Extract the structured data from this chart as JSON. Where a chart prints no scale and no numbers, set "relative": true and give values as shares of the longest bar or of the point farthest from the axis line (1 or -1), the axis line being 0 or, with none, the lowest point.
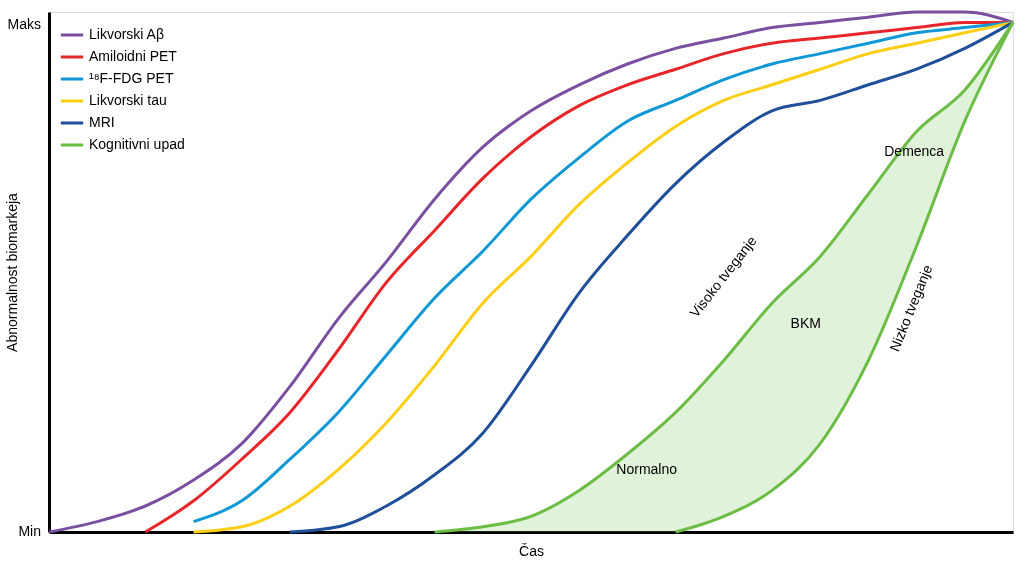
{
  "chart_data": {
    "type": "line",
    "relative": true,
    "ylabel": "Abnormalnost biomarkeja",
    "xlabel": "Čas",
    "categories": [
      null,
      null,
      null,
      null,
      null,
      null,
      null,
      null,
      null,
      null,
      null,
      null,
      null,
      null,
      null,
      null,
      null,
      null,
      null,
      null,
      null
    ],
    "legend": "top left",
    "marker": "none",
    "line_style": "solid",
    "series": [
      {
        "name": "Likvorski Aβ",
        "color": "#7b4fa0",
        "values": [
          0,
          0.02,
          0.05,
          0.1,
          0.17,
          0.28,
          0.41,
          0.52,
          0.64,
          0.74,
          0.81,
          0.86,
          0.9,
          0.93,
          0.95,
          0.97,
          0.98,
          0.99,
          1,
          1,
          0.98
        ]
      },
      {
        "name": "Amiloidni PET",
        "color": "#e8262a",
        "values": [
          null,
          null,
          0,
          0.06,
          0.14,
          0.23,
          0.35,
          0.48,
          0.58,
          0.68,
          0.76,
          0.82,
          0.86,
          0.89,
          0.92,
          0.94,
          0.95,
          0.96,
          0.97,
          0.98,
          0.98
        ]
      },
      {
        "name": "¹⁸F-FDG PET",
        "color": "#0f98d5",
        "values": [
          null,
          null,
          null,
          0.02,
          0.06,
          0.14,
          0.23,
          0.34,
          0.45,
          0.54,
          0.64,
          0.72,
          0.79,
          0.83,
          0.87,
          0.9,
          0.92,
          0.94,
          0.96,
          0.97,
          0.98
        ]
      },
      {
        "name": "Likvorski tau",
        "color": "#fccf14",
        "values": [
          null,
          null,
          null,
          0,
          0.01,
          0.05,
          0.12,
          0.21,
          0.32,
          0.44,
          0.53,
          0.63,
          0.71,
          0.78,
          0.83,
          0.86,
          0.89,
          0.92,
          0.94,
          0.96,
          0.98
        ]
      },
      {
        "name": "MRI",
        "color": "#1f4f99",
        "values": [
          null,
          null,
          null,
          null,
          null,
          0,
          0.01,
          0.05,
          0.11,
          0.19,
          0.32,
          0.46,
          0.57,
          0.67,
          0.75,
          0.81,
          0.83,
          0.86,
          0.89,
          0.93,
          0.98
        ]
      },
      {
        "name": "Kognitivni upad",
        "color": "#6bbd45",
        "values": [
          null,
          null,
          null,
          null,
          null,
          null,
          null,
          null,
          0,
          0.01,
          0.03,
          0.08,
          0.15,
          0.23,
          0.33,
          0.44,
          0.53,
          0.65,
          0.77,
          0.85,
          0.98
        ],
        "lower": [
          null,
          null,
          null,
          null,
          null,
          null,
          null,
          null,
          0,
          0,
          0,
          0,
          0,
          0,
          0.03,
          0.08,
          0.17,
          0.33,
          0.55,
          0.79,
          0.98
        ],
        "upper": [
          null,
          null,
          null,
          null,
          null,
          null,
          null,
          null,
          0,
          0.01,
          0.03,
          0.08,
          0.15,
          0.23,
          0.33,
          0.44,
          0.53,
          0.65,
          0.77,
          0.85,
          0.98
        ]
      },
      {
        "color": "#6bbd45",
        "values": [
          null,
          null,
          null,
          null,
          null,
          null,
          null,
          null,
          null,
          null,
          null,
          null,
          null,
          0,
          0.03,
          0.08,
          0.17,
          0.33,
          0.55,
          0.79,
          0.98
        ]
      }
    ],
    "annotations": [
      "Min",
      "Maks",
      "Demenca",
      "BKM",
      "Normalno",
      "Visoko tveganje",
      "Nizko tveganje"
    ]
  }
}
